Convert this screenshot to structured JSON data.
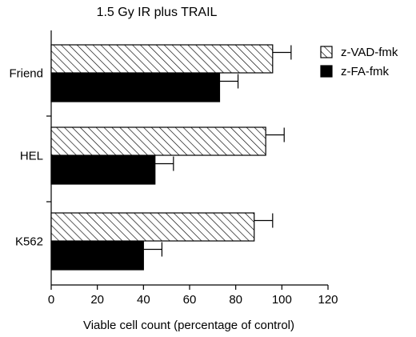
{
  "chart_data": {
    "type": "bar",
    "orientation": "horizontal",
    "title": "1.5 Gy IR plus TRAIL",
    "xlabel": "Viable cell count (percentage of control)",
    "ylabel": "",
    "xlim": [
      0,
      120
    ],
    "x_ticks": [
      "0",
      "20",
      "40",
      "60",
      "80",
      "100",
      "120"
    ],
    "grid": false,
    "legend_position": "top-right",
    "categories": [
      "Friend",
      "HEL",
      "K562"
    ],
    "series": [
      {
        "name": "z-VAD-fmk",
        "pattern": "hatched",
        "color": "#ffffff",
        "values": [
          96,
          93,
          88
        ],
        "errors": [
          8,
          8,
          8
        ]
      },
      {
        "name": "z-FA-fmk",
        "pattern": "solid",
        "color": "#000000",
        "values": [
          73,
          45,
          40
        ],
        "errors": [
          8,
          8,
          8
        ]
      }
    ]
  }
}
